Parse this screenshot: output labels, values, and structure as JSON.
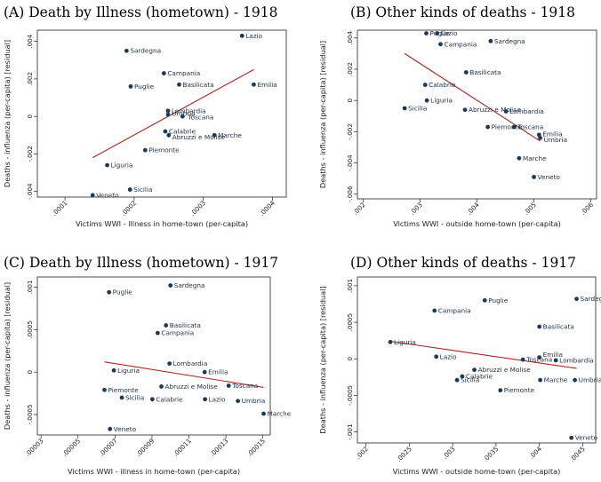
{
  "chart_data": [
    {
      "type": "scatter",
      "title": "(A) Death by Illness (hometown) - 1918",
      "xlabel": "Victims WWI - illness in home-town (per-capita)",
      "ylabel": "Deaths - influenza (per-capita) [residual]",
      "xlim": [
        6e-05,
        0.00042
      ],
      "ylim": [
        -0.0043,
        0.0046
      ],
      "xticks": [
        0.0001,
        0.0002,
        0.0003,
        0.0004
      ],
      "xtick_labels": [
        ".0001",
        ".0002",
        ".0003",
        ".0004"
      ],
      "yticks": [
        -0.004,
        -0.002,
        0,
        0.002,
        0.004
      ],
      "ytick_labels": [
        "-.004",
        "-.002",
        "0",
        ".002",
        ".004"
      ],
      "points": [
        {
          "label": "Lazio",
          "x": 0.000356,
          "y": 0.0043
        },
        {
          "label": "Sardegna",
          "x": 0.000189,
          "y": 0.0035
        },
        {
          "label": "Campania",
          "x": 0.000243,
          "y": 0.0023
        },
        {
          "label": "Puglie",
          "x": 0.000195,
          "y": 0.0016
        },
        {
          "label": "Basilicata",
          "x": 0.000265,
          "y": 0.0017
        },
        {
          "label": "Emilia",
          "x": 0.000373,
          "y": 0.0017
        },
        {
          "label": "Lombardia",
          "x": 0.000249,
          "y": 0.0003
        },
        {
          "label": "Umbria",
          "x": 0.000249,
          "y": 0.0001
        },
        {
          "label": "Toscana",
          "x": 0.00027,
          "y": 0.0
        },
        {
          "label": "Calabrie",
          "x": 0.000245,
          "y": -0.0008
        },
        {
          "label": "Abruzzi e Molise",
          "x": 0.00025,
          "y": -0.001
        },
        {
          "label": "Marche",
          "x": 0.000316,
          "y": -0.001
        },
        {
          "label": "Piemonte",
          "x": 0.000216,
          "y": -0.0018
        },
        {
          "label": "Liguria",
          "x": 0.000161,
          "y": -0.0026
        },
        {
          "label": "Sicilia",
          "x": 0.000194,
          "y": -0.0039
        },
        {
          "label": "Veneto",
          "x": 0.00014,
          "y": -0.0042
        }
      ],
      "fit": {
        "x": [
          0.00014,
          0.000373
        ],
        "y": [
          -0.0022,
          0.0025
        ]
      }
    },
    {
      "type": "scatter",
      "title": "(B) Other kinds of deaths - 1918",
      "xlabel": "Victims WWI - outside home-town (per-capita)",
      "ylabel": "Deaths - influenza (per-capita) [residual]",
      "xlim": [
        0.0019,
        0.0061
      ],
      "ylim": [
        -0.0063,
        0.0045
      ],
      "xticks": [
        0.002,
        0.003,
        0.004,
        0.005,
        0.006
      ],
      "xtick_labels": [
        ".002",
        ".003",
        ".004",
        ".005",
        ".006"
      ],
      "yticks": [
        -0.006,
        -0.004,
        -0.002,
        0,
        0.002,
        0.004
      ],
      "ytick_labels": [
        "-.006",
        "-.004",
        "-.002",
        "0",
        ".002",
        ".004"
      ],
      "points": [
        {
          "label": "Puglie",
          "x": 0.00311,
          "y": 0.0043
        },
        {
          "label": "Lazio",
          "x": 0.0033,
          "y": 0.0043
        },
        {
          "label": "Sardegna",
          "x": 0.00424,
          "y": 0.0038
        },
        {
          "label": "Campania",
          "x": 0.00336,
          "y": 0.0036
        },
        {
          "label": "Basilicata",
          "x": 0.00381,
          "y": 0.0018
        },
        {
          "label": "Calabrie",
          "x": 0.00309,
          "y": 0.001
        },
        {
          "label": "Liguria",
          "x": 0.00312,
          "y": 0.0
        },
        {
          "label": "Sicilia",
          "x": 0.00273,
          "y": -0.0005
        },
        {
          "label": "Abruzzi e Molise",
          "x": 0.00379,
          "y": -0.0006
        },
        {
          "label": "Lombardia",
          "x": 0.00451,
          "y": -0.0007
        },
        {
          "label": "Piemonte",
          "x": 0.00419,
          "y": -0.0017
        },
        {
          "label": "Toscana",
          "x": 0.00465,
          "y": -0.0017
        },
        {
          "label": "Emilia",
          "x": 0.00509,
          "y": -0.0022
        },
        {
          "label": "Umbria",
          "x": 0.00511,
          "y": -0.0024
        },
        {
          "label": "Marche",
          "x": 0.00474,
          "y": -0.0037
        },
        {
          "label": "Veneto",
          "x": 0.005,
          "y": -0.0049
        }
      ],
      "fit": {
        "x": [
          0.00273,
          0.00511
        ],
        "y": [
          0.003,
          -0.0026
        ]
      }
    },
    {
      "type": "scatter",
      "title": "(C) Death by Illness (hometown) - 1917",
      "xlabel": "Victims WWI - illness in home-town (per-capita)",
      "ylabel": "Deaths - influenza (per-capita) [residual]",
      "xlim": [
        2.8e-05,
        0.000154
      ],
      "ylim": [
        -0.00074,
        0.00112
      ],
      "xticks": [
        3e-05,
        5e-05,
        7e-05,
        9e-05,
        0.00011,
        0.00013,
        0.00015
      ],
      "xtick_labels": [
        ".00003",
        ".00005",
        ".00007",
        ".00009",
        ".00011",
        ".00013",
        ".00015"
      ],
      "yticks": [
        -0.0005,
        0,
        0.0005,
        0.001
      ],
      "ytick_labels": [
        "-.0005",
        "0",
        ".0005",
        ".001"
      ],
      "points": [
        {
          "label": "Sardegna",
          "x": 0.0001,
          "y": 0.00102
        },
        {
          "label": "Puglie",
          "x": 6.68e-05,
          "y": 0.00094
        },
        {
          "label": "Basilicata",
          "x": 9.76e-05,
          "y": 0.00055
        },
        {
          "label": "Campania",
          "x": 9.31e-05,
          "y": 0.00046
        },
        {
          "label": "Lombardia",
          "x": 9.95e-05,
          "y": 0.0001
        },
        {
          "label": "Liguria",
          "x": 6.94e-05,
          "y": 2e-05
        },
        {
          "label": "Emilia",
          "x": 0.0001185,
          "y": 0.0
        },
        {
          "label": "Abruzzi e Molise",
          "x": 9.51e-05,
          "y": -0.00017
        },
        {
          "label": "Toscana",
          "x": 0.0001315,
          "y": -0.00016
        },
        {
          "label": "Piemonte",
          "x": 6.43e-05,
          "y": -0.00021
        },
        {
          "label": "Sicilia",
          "x": 7.37e-05,
          "y": -0.0003
        },
        {
          "label": "Calabrie",
          "x": 9.02e-05,
          "y": -0.00032
        },
        {
          "label": "Lazio",
          "x": 0.0001187,
          "y": -0.00032
        },
        {
          "label": "Umbria",
          "x": 0.0001365,
          "y": -0.00034
        },
        {
          "label": "Marche",
          "x": 0.0001504,
          "y": -0.00049
        },
        {
          "label": "Veneto",
          "x": 6.73e-05,
          "y": -0.00067
        }
      ],
      "fit": {
        "x": [
          6.43e-05,
          0.0001504
        ],
        "y": [
          0.00012,
          -0.00018
        ]
      }
    },
    {
      "type": "scatter",
      "title": "(D) Other kinds of deaths - 1917",
      "xlabel": "Victims WWI - outside home-town (per-capita)",
      "ylabel": "Deaths - influenza (per-capita) [residual]",
      "xlim": [
        0.0019,
        0.00465
      ],
      "ylim": [
        -0.00115,
        0.00112
      ],
      "xticks": [
        0.002,
        0.0025,
        0.003,
        0.0035,
        0.004,
        0.0045
      ],
      "xtick_labels": [
        ".002",
        ".0025",
        ".003",
        ".0035",
        ".004",
        ".0045"
      ],
      "yticks": [
        -0.001,
        -0.0005,
        0,
        0.0005,
        0.001
      ],
      "ytick_labels": [
        "-.001",
        "-.0005",
        "0",
        ".0005",
        ".001"
      ],
      "points": [
        {
          "label": "Sardegna",
          "x": 0.00443,
          "y": 0.00082
        },
        {
          "label": "Puglie",
          "x": 0.00337,
          "y": 0.0008
        },
        {
          "label": "Campania",
          "x": 0.00279,
          "y": 0.00066
        },
        {
          "label": "Basilicata",
          "x": 0.004,
          "y": 0.00044
        },
        {
          "label": "Liguria",
          "x": 0.00228,
          "y": 0.00023
        },
        {
          "label": "Lazio",
          "x": 0.00281,
          "y": 3e-05
        },
        {
          "label": "Emilia",
          "x": 0.004,
          "y": 2e-05
        },
        {
          "label": "Toscana",
          "x": 0.00381,
          "y": -1e-05
        },
        {
          "label": "Lombardia",
          "x": 0.00419,
          "y": -2e-05
        },
        {
          "label": "Abruzzi e Molise",
          "x": 0.00325,
          "y": -0.00015
        },
        {
          "label": "Calabrie",
          "x": 0.00311,
          "y": -0.00024
        },
        {
          "label": "Sicilia",
          "x": 0.00305,
          "y": -0.00029
        },
        {
          "label": "Marche",
          "x": 0.00401,
          "y": -0.00029
        },
        {
          "label": "Umbria",
          "x": 0.00441,
          "y": -0.00029
        },
        {
          "label": "Piemonte",
          "x": 0.00355,
          "y": -0.00043
        },
        {
          "label": "Veneto",
          "x": 0.00437,
          "y": -0.00108
        }
      ],
      "fit": {
        "x": [
          0.00228,
          0.00443
        ],
        "y": [
          0.00024,
          -0.00013
        ]
      }
    }
  ],
  "colors": {
    "points": "#1a3a5c",
    "fit_line": "#b22222",
    "labels": "#1f2d3d"
  }
}
